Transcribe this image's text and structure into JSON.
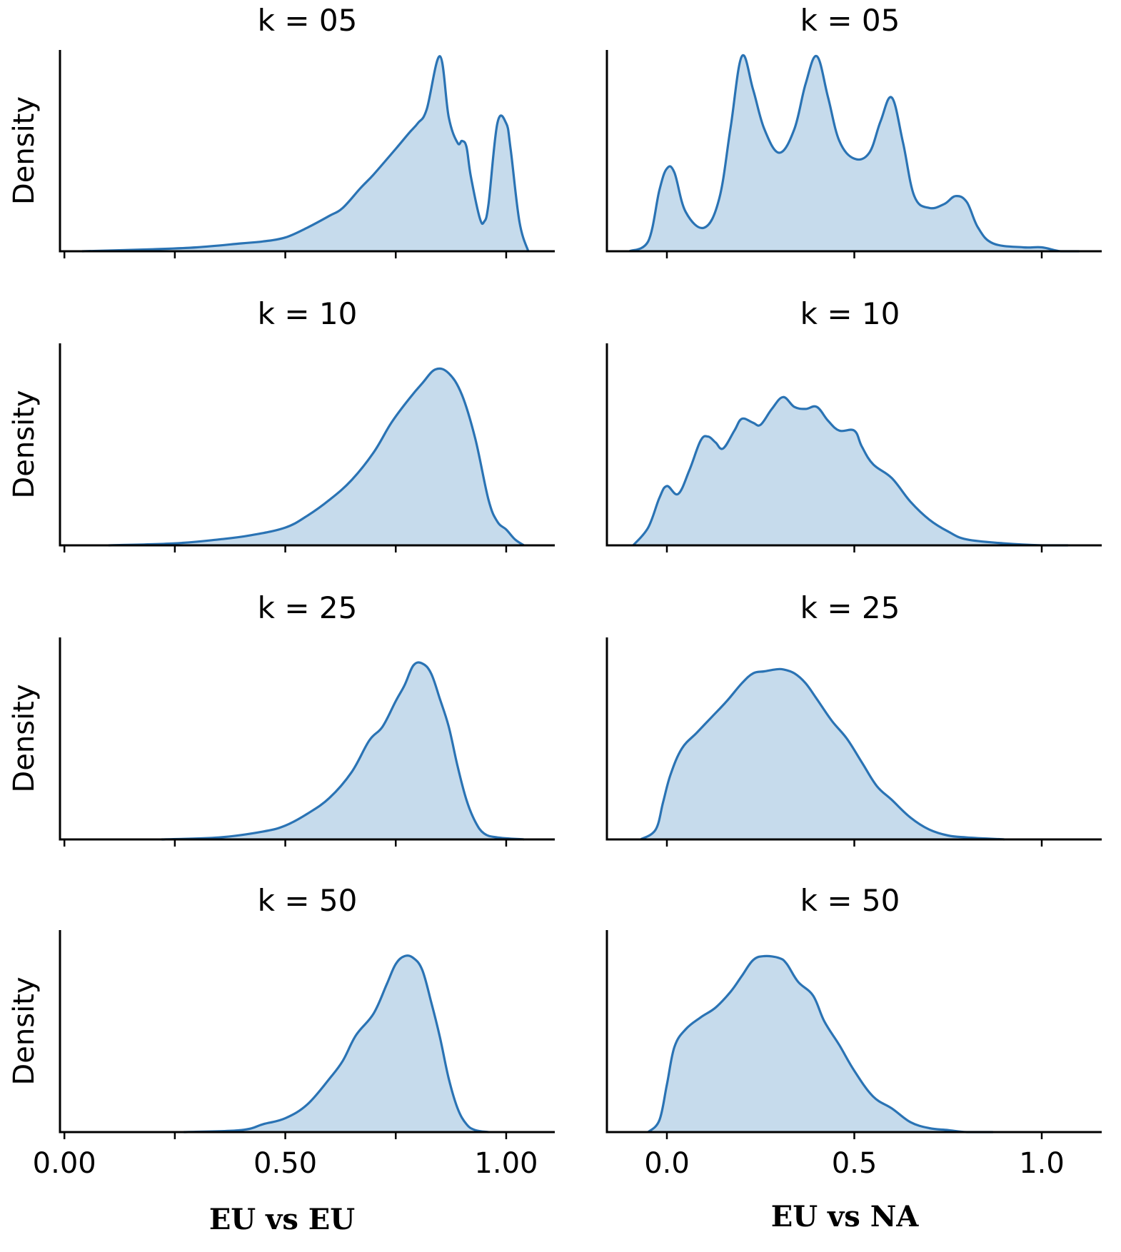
{
  "figure": {
    "row_titles": [
      "k = 05",
      "k = 10",
      "k = 25",
      "k = 50"
    ],
    "ylabel": "Density",
    "column_xlabels": [
      "EU vs EU",
      "EU vs NA"
    ],
    "colors": {
      "fill": "#c6dbec",
      "line": "#2a73b4",
      "axis": "#000000"
    }
  },
  "chart_data": [
    {
      "type": "area",
      "column": "EU vs EU",
      "title": "k = 05",
      "ylabel": "Density",
      "xlabel": "",
      "xlim": [
        -0.01,
        1.11
      ],
      "xticks": [
        0.0,
        0.25,
        0.5,
        0.75,
        1.0
      ],
      "xtick_labels": [],
      "ylim": [
        0,
        1.0
      ],
      "x": [
        0.04,
        0.2,
        0.3,
        0.4,
        0.45,
        0.5,
        0.55,
        0.6,
        0.63,
        0.67,
        0.7,
        0.75,
        0.78,
        0.8,
        0.82,
        0.85,
        0.87,
        0.89,
        0.9,
        0.91,
        0.92,
        0.94,
        0.95,
        0.96,
        0.98,
        1.0,
        1.01,
        1.03,
        1.05
      ],
      "y": [
        0.0,
        0.01,
        0.02,
        0.04,
        0.05,
        0.07,
        0.12,
        0.18,
        0.22,
        0.32,
        0.39,
        0.52,
        0.6,
        0.65,
        0.72,
        0.99,
        0.68,
        0.55,
        0.56,
        0.53,
        0.38,
        0.17,
        0.15,
        0.24,
        0.65,
        0.65,
        0.52,
        0.15,
        0.0
      ]
    },
    {
      "type": "area",
      "column": "EU vs EU",
      "title": "k = 10",
      "ylabel": "Density",
      "xlabel": "",
      "xlim": [
        -0.01,
        1.11
      ],
      "xticks": [
        0.0,
        0.25,
        0.5,
        0.75,
        1.0
      ],
      "xtick_labels": [],
      "ylim": [
        0,
        1.0
      ],
      "x": [
        0.1,
        0.25,
        0.35,
        0.42,
        0.5,
        0.55,
        0.6,
        0.65,
        0.7,
        0.74,
        0.78,
        0.81,
        0.84,
        0.87,
        0.9,
        0.93,
        0.96,
        0.98,
        1.0,
        1.02,
        1.04
      ],
      "y": [
        0.0,
        0.01,
        0.03,
        0.05,
        0.09,
        0.15,
        0.23,
        0.33,
        0.47,
        0.62,
        0.74,
        0.82,
        0.89,
        0.87,
        0.76,
        0.54,
        0.23,
        0.12,
        0.08,
        0.03,
        0.0
      ]
    },
    {
      "type": "area",
      "column": "EU vs EU",
      "title": "k = 25",
      "ylabel": "Density",
      "xlabel": "",
      "xlim": [
        -0.01,
        1.11
      ],
      "xticks": [
        0.0,
        0.25,
        0.5,
        0.75,
        1.0
      ],
      "xtick_labels": [],
      "ylim": [
        0,
        1.0
      ],
      "x": [
        0.22,
        0.35,
        0.45,
        0.5,
        0.55,
        0.6,
        0.65,
        0.69,
        0.72,
        0.75,
        0.77,
        0.79,
        0.81,
        0.83,
        0.85,
        0.87,
        0.89,
        0.91,
        0.93,
        0.95,
        0.98,
        1.04
      ],
      "y": [
        0.0,
        0.01,
        0.04,
        0.07,
        0.13,
        0.21,
        0.34,
        0.5,
        0.57,
        0.7,
        0.78,
        0.88,
        0.89,
        0.84,
        0.71,
        0.57,
        0.37,
        0.2,
        0.09,
        0.03,
        0.01,
        0.0
      ]
    },
    {
      "type": "area",
      "column": "EU vs EU",
      "title": "k = 50",
      "ylabel": "Density",
      "xlabel": "",
      "xlim": [
        -0.01,
        1.11
      ],
      "xticks": [
        0.0,
        0.25,
        0.5,
        0.75,
        1.0
      ],
      "xtick_labels": [
        "0.00",
        "0.50",
        "1.00"
      ],
      "ylim": [
        0,
        1.0
      ],
      "x": [
        0.27,
        0.4,
        0.45,
        0.5,
        0.55,
        0.6,
        0.63,
        0.66,
        0.7,
        0.73,
        0.75,
        0.77,
        0.79,
        0.81,
        0.83,
        0.85,
        0.87,
        0.89,
        0.91,
        0.93,
        0.96
      ],
      "y": [
        0.0,
        0.01,
        0.04,
        0.07,
        0.14,
        0.27,
        0.36,
        0.49,
        0.6,
        0.75,
        0.85,
        0.89,
        0.88,
        0.82,
        0.66,
        0.48,
        0.27,
        0.12,
        0.04,
        0.01,
        0.0
      ]
    },
    {
      "type": "area",
      "column": "EU vs NA",
      "title": "k = 05",
      "ylabel": "",
      "xlabel": "",
      "xlim": [
        -0.16,
        1.16
      ],
      "xticks": [
        0.0,
        0.5,
        1.0
      ],
      "xtick_labels": [],
      "ylim": [
        0,
        1.0
      ],
      "x": [
        -0.1,
        -0.05,
        -0.02,
        0.0,
        0.02,
        0.05,
        0.1,
        0.14,
        0.17,
        0.2,
        0.23,
        0.26,
        0.3,
        0.34,
        0.37,
        0.4,
        0.43,
        0.46,
        0.5,
        0.54,
        0.57,
        0.6,
        0.63,
        0.66,
        0.7,
        0.74,
        0.77,
        0.8,
        0.83,
        0.87,
        0.95,
        1.0,
        1.05,
        1.1
      ],
      "y": [
        0.0,
        0.05,
        0.31,
        0.42,
        0.4,
        0.2,
        0.12,
        0.27,
        0.63,
        0.99,
        0.82,
        0.62,
        0.5,
        0.62,
        0.85,
        0.99,
        0.78,
        0.56,
        0.47,
        0.5,
        0.66,
        0.78,
        0.55,
        0.28,
        0.22,
        0.24,
        0.28,
        0.25,
        0.12,
        0.04,
        0.02,
        0.02,
        0.0,
        0.0
      ]
    },
    {
      "type": "area",
      "column": "EU vs NA",
      "title": "k = 10",
      "ylabel": "",
      "xlabel": "",
      "xlim": [
        -0.16,
        1.16
      ],
      "xticks": [
        0.0,
        0.5,
        1.0
      ],
      "xtick_labels": [],
      "ylim": [
        0,
        1.0
      ],
      "x": [
        -0.09,
        -0.05,
        -0.02,
        0.0,
        0.03,
        0.06,
        0.09,
        0.11,
        0.13,
        0.15,
        0.18,
        0.2,
        0.23,
        0.25,
        0.28,
        0.31,
        0.34,
        0.37,
        0.4,
        0.43,
        0.46,
        0.5,
        0.52,
        0.55,
        0.6,
        0.65,
        0.7,
        0.75,
        0.8,
        0.9,
        1.0,
        1.07
      ],
      "y": [
        0.0,
        0.09,
        0.24,
        0.3,
        0.26,
        0.38,
        0.53,
        0.55,
        0.52,
        0.49,
        0.58,
        0.64,
        0.62,
        0.61,
        0.69,
        0.75,
        0.7,
        0.69,
        0.7,
        0.63,
        0.58,
        0.58,
        0.5,
        0.41,
        0.34,
        0.22,
        0.13,
        0.07,
        0.03,
        0.01,
        0.0,
        0.0
      ]
    },
    {
      "type": "area",
      "column": "EU vs NA",
      "title": "k = 25",
      "ylabel": "",
      "xlabel": "",
      "xlim": [
        -0.16,
        1.16
      ],
      "xticks": [
        0.0,
        0.5,
        1.0
      ],
      "xtick_labels": [],
      "ylim": [
        0,
        1.0
      ],
      "x": [
        -0.07,
        -0.03,
        -0.01,
        0.01,
        0.04,
        0.08,
        0.12,
        0.16,
        0.2,
        0.23,
        0.26,
        0.29,
        0.31,
        0.34,
        0.37,
        0.4,
        0.44,
        0.48,
        0.52,
        0.56,
        0.6,
        0.65,
        0.7,
        0.75,
        0.8,
        0.9
      ],
      "y": [
        0.0,
        0.05,
        0.19,
        0.33,
        0.46,
        0.54,
        0.62,
        0.7,
        0.79,
        0.84,
        0.85,
        0.86,
        0.86,
        0.84,
        0.79,
        0.71,
        0.6,
        0.51,
        0.39,
        0.27,
        0.2,
        0.11,
        0.05,
        0.02,
        0.01,
        0.0
      ]
    },
    {
      "type": "area",
      "column": "EU vs NA",
      "title": "k = 50",
      "ylabel": "",
      "xlabel": "",
      "xlim": [
        -0.16,
        1.16
      ],
      "xticks": [
        0.0,
        0.5,
        1.0
      ],
      "xtick_labels": [
        "0.0",
        "0.5",
        "1.0"
      ],
      "ylim": [
        0,
        1.0
      ],
      "x": [
        -0.05,
        -0.02,
        0.0,
        0.02,
        0.05,
        0.09,
        0.13,
        0.17,
        0.2,
        0.23,
        0.26,
        0.3,
        0.32,
        0.35,
        0.39,
        0.42,
        0.46,
        0.5,
        0.55,
        0.6,
        0.65,
        0.7,
        0.75,
        0.8,
        0.87
      ],
      "y": [
        0.0,
        0.06,
        0.24,
        0.43,
        0.52,
        0.58,
        0.63,
        0.71,
        0.79,
        0.87,
        0.89,
        0.88,
        0.85,
        0.76,
        0.69,
        0.56,
        0.44,
        0.31,
        0.18,
        0.12,
        0.05,
        0.02,
        0.01,
        0.0,
        0.0
      ]
    }
  ]
}
